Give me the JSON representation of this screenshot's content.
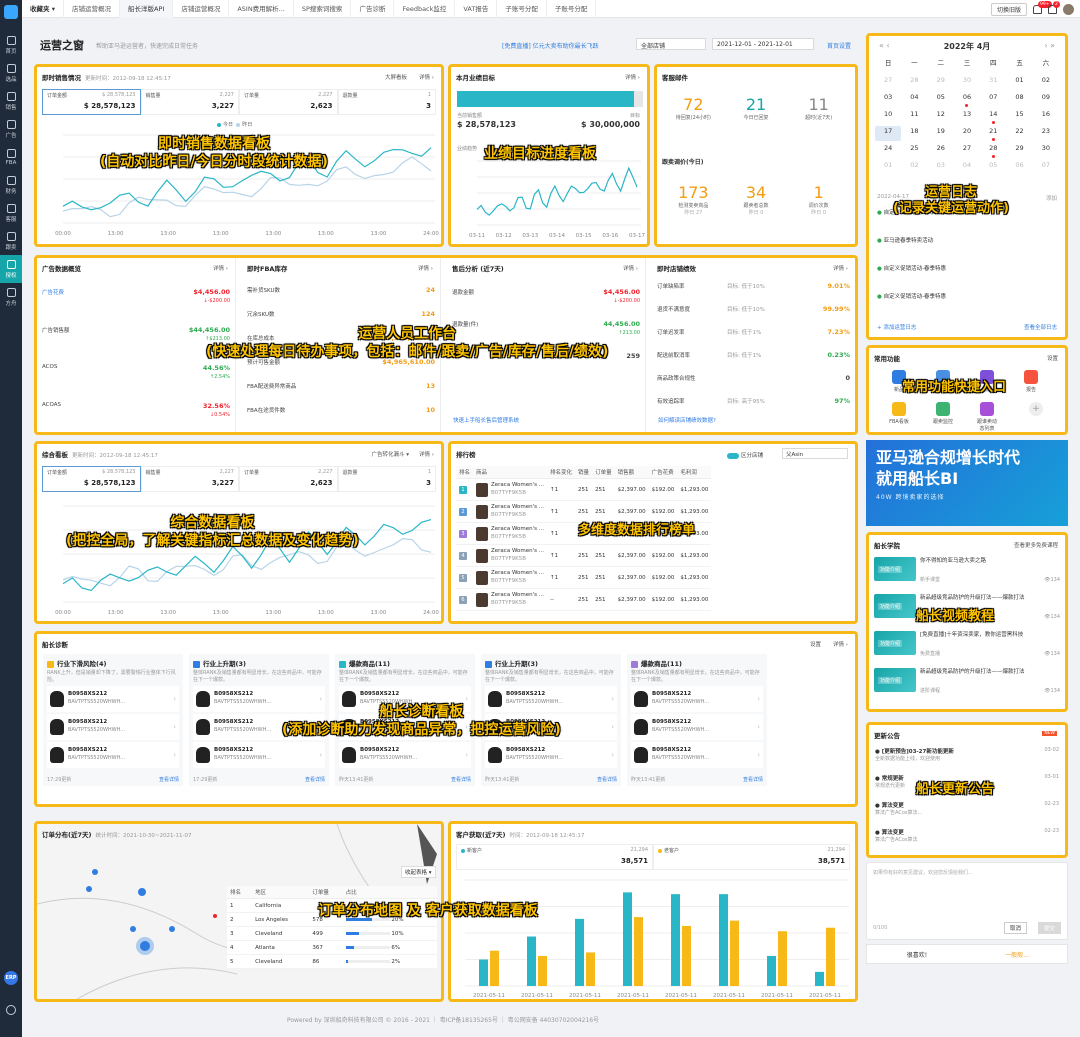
{
  "sidebar": {
    "items": [
      {
        "label": "首页",
        "icon": "home-icon"
      },
      {
        "label": "选品",
        "icon": "select-icon"
      },
      {
        "label": "销售",
        "icon": "sales-icon"
      },
      {
        "label": "广告",
        "icon": "ad-icon"
      },
      {
        "label": "FBA",
        "icon": "fba-icon"
      },
      {
        "label": "财务",
        "icon": "finance-icon"
      },
      {
        "label": "客服",
        "icon": "service-icon"
      },
      {
        "label": "跟卖",
        "icon": "follow-icon"
      },
      {
        "label": "授权",
        "icon": "auth-icon"
      },
      {
        "label": "方舟",
        "icon": "ark-icon"
      }
    ],
    "active_index": 8,
    "erp_label": "ERP"
  },
  "topbar": {
    "tabs": [
      "收藏夹 ▾",
      "店铺运营概况",
      "船长洋版API",
      "店铺运营概况",
      "ASIN费用解析...",
      "SP搜索词搜索",
      "广告诊断",
      "Feedback监控",
      "VAT报告",
      "子账号分配",
      "子账号分配"
    ],
    "active_tab": 2,
    "switch_button": "切换旧版",
    "notif_count": "99+",
    "msg_count": "2"
  },
  "header": {
    "title": "运营之窗",
    "subtitle": "帮助亚马逊运营者，快速完成日常任务",
    "link": "[免费直播] 亿元大卖布助你最长飞跃",
    "select": "全部店铺",
    "date_range": "2021-12-01 - 2021-12-01",
    "settings": "首页设置"
  },
  "realtime_sales": {
    "title": "即时销售情况",
    "time": "更新时间：2012-09-18 12:45:17",
    "menu1": "大屏看板",
    "menu2": "详情 ›",
    "metrics": [
      {
        "label": "订单金额",
        "ref": "$ 28,578,123",
        "value": "$ 28,578,123"
      },
      {
        "label": "销售量",
        "ref": "2,227",
        "value": "3,227"
      },
      {
        "label": "订单量",
        "ref": "2,227",
        "value": "2,623"
      },
      {
        "label": "退款量",
        "ref": "1",
        "value": "3"
      }
    ],
    "legend": [
      "今日",
      "昨日"
    ],
    "x_ticks": [
      "00:00",
      "13:00",
      "13:00",
      "13:00",
      "13:00",
      "13:00",
      "13:00",
      "24:00"
    ]
  },
  "monthly_target": {
    "title": "本月业绩目标",
    "menu": "详情 ›",
    "progress": 0.95,
    "current_label": "当前销售额",
    "current": "$ 28,578,123",
    "target_label": "目标",
    "target": "$ 30,000,000",
    "trend_label": "业绩趋势",
    "x_ticks": [
      "03-11",
      "03-12",
      "03-13",
      "03-14",
      "03-15",
      "03-16",
      "03-17"
    ]
  },
  "customer_mail": {
    "title": "客服邮件",
    "stats": [
      {
        "value": "72",
        "label": "待回复(24小时)"
      },
      {
        "value": "21",
        "label": "今日已回复"
      },
      {
        "value": "11",
        "label": "超时(近7天)"
      }
    ],
    "follow_title": "跟卖调价(今日)",
    "follow_stats": [
      {
        "value": "173",
        "label": "检测变卖商品",
        "sub": "昨日 27"
      },
      {
        "value": "34",
        "label": "跟卖者总数",
        "sub": "昨日 0"
      },
      {
        "value": "1",
        "label": "调价次数",
        "sub": "昨日 0"
      }
    ]
  },
  "calendar": {
    "title": "2022年 4月",
    "weekdays": [
      "日",
      "一",
      "二",
      "三",
      "四",
      "五",
      "六"
    ],
    "days": [
      {
        "d": "27",
        "m": "o"
      },
      {
        "d": "28",
        "m": "o"
      },
      {
        "d": "29",
        "m": "o"
      },
      {
        "d": "30",
        "m": "o"
      },
      {
        "d": "31",
        "m": "o"
      },
      {
        "d": "01",
        "m": ""
      },
      {
        "d": "02",
        "m": ""
      },
      {
        "d": "03",
        "m": ""
      },
      {
        "d": "04",
        "m": ""
      },
      {
        "d": "05",
        "m": ""
      },
      {
        "d": "06",
        "m": "dot"
      },
      {
        "d": "07",
        "m": ""
      },
      {
        "d": "08",
        "m": ""
      },
      {
        "d": "09",
        "m": ""
      },
      {
        "d": "10",
        "m": ""
      },
      {
        "d": "11",
        "m": ""
      },
      {
        "d": "12",
        "m": ""
      },
      {
        "d": "13",
        "m": ""
      },
      {
        "d": "14",
        "m": "dot"
      },
      {
        "d": "15",
        "m": ""
      },
      {
        "d": "16",
        "m": ""
      },
      {
        "d": "17",
        "m": "sel"
      },
      {
        "d": "18",
        "m": ""
      },
      {
        "d": "19",
        "m": ""
      },
      {
        "d": "20",
        "m": ""
      },
      {
        "d": "21",
        "m": "dot"
      },
      {
        "d": "22",
        "m": ""
      },
      {
        "d": "23",
        "m": ""
      },
      {
        "d": "24",
        "m": ""
      },
      {
        "d": "25",
        "m": ""
      },
      {
        "d": "26",
        "m": ""
      },
      {
        "d": "27",
        "m": ""
      },
      {
        "d": "28",
        "m": "dot"
      },
      {
        "d": "29",
        "m": ""
      },
      {
        "d": "30",
        "m": ""
      },
      {
        "d": "01",
        "m": "o"
      },
      {
        "d": "02",
        "m": "o"
      },
      {
        "d": "03",
        "m": "o"
      },
      {
        "d": "04",
        "m": "o"
      },
      {
        "d": "05",
        "m": "o"
      },
      {
        "d": "06",
        "m": "o"
      },
      {
        "d": "07",
        "m": "o"
      }
    ],
    "log_date": "2022-04-17",
    "log_menu": "添加",
    "logs": [
      {
        "text": "自定义促销活动-春季特惠",
        "date": ""
      },
      {
        "text": "亚马逊春季特卖活动",
        "date": ""
      },
      {
        "text": "自定义促销活动-春季特惠",
        "date": ""
      },
      {
        "text": "自定义促销活动-春季特惠",
        "date": ""
      }
    ],
    "add_link": "+ 添加运营日志",
    "all_link": "查看全部日志"
  },
  "ad_overview": {
    "title": "广告数据概览",
    "menu": "详情 ›",
    "rows": [
      {
        "label": "广告花费",
        "value": "$4,456.00",
        "delta": "↓-$200.00",
        "cls": "red",
        "lcls": "blue"
      },
      {
        "label": "广告销售额",
        "value": "$44,456.00",
        "delta": "↑$213.00",
        "cls": "green",
        "lcls": ""
      },
      {
        "label": "ACOS",
        "value": "44.56%",
        "delta": "↑2.54%",
        "cls": "green",
        "lcls": ""
      },
      {
        "label": "ACOAS",
        "value": "32.56%",
        "delta": "↓0.54%",
        "cls": "red",
        "lcls": ""
      }
    ]
  },
  "fba_inventory": {
    "title": "即时FBA库存",
    "menu": "详情 ›",
    "rows": [
      {
        "label": "需补货SKU数",
        "value": "24"
      },
      {
        "label": "冗余SKU数",
        "value": "124"
      },
      {
        "label": "在库总成本",
        "value": "$4,965,610.00"
      },
      {
        "label": "预计可售金额",
        "value": "$4,965,610.00"
      },
      {
        "label": "FBA配送费异常商品",
        "value": "13"
      },
      {
        "label": "FBA在途货件数",
        "value": "10"
      }
    ]
  },
  "after_sales": {
    "title": "售后分析 (近7天)",
    "menu": "详情 ›",
    "rows": [
      {
        "label": "退款金额",
        "value": "$4,456.00",
        "delta": "↓-$200.00",
        "cls": "red"
      },
      {
        "label": "退款量(件)",
        "value": "44,456.00",
        "delta": "↑213.00",
        "cls": "green"
      },
      {
        "label": "Review",
        "value": "259",
        "delta": "",
        "cls": ""
      }
    ],
    "link": "快速上手船长售后管理系统"
  },
  "performance": {
    "title": "即时店铺绩效",
    "menu": "详情 ›",
    "rows": [
      {
        "label": "订单缺陷率",
        "goal": "目标: 低于10%",
        "value": "9.01%",
        "cls": "orange"
      },
      {
        "label": "退货不满意度",
        "goal": "目标: 低于10%",
        "value": "99.99%",
        "cls": "orange"
      },
      {
        "label": "订单迟发率",
        "goal": "目标: 低于1%",
        "value": "7.23%",
        "cls": "orange"
      },
      {
        "label": "配送前取消率",
        "goal": "目标: 低于1%",
        "value": "0.23%",
        "cls": "green"
      },
      {
        "label": "商品政策合规性",
        "goal": "",
        "value": "0",
        "cls": ""
      },
      {
        "label": "有效追踪率",
        "goal": "目标: 高于95%",
        "value": "97%",
        "cls": "green"
      }
    ],
    "link": "如何解读店铺绩效数据?"
  },
  "quick_funcs": {
    "title": "常用功能",
    "menu": "设置",
    "items": [
      {
        "label": "新品",
        "color": "#2f7de1",
        "icon": "new-product-icon"
      },
      {
        "label": "广告",
        "color": "#4a90e2",
        "icon": "ad-func-icon"
      },
      {
        "label": "利润",
        "color": "#7e4fd9",
        "icon": "profit-icon"
      },
      {
        "label": "报告",
        "color": "#f5533d",
        "icon": "report-icon"
      },
      {
        "label": "FBA看板",
        "color": "#f7b917",
        "icon": "fba-board-icon"
      },
      {
        "label": "跟卖监控",
        "color": "#3cb371",
        "icon": "monitor-icon"
      },
      {
        "label": "跟谁卖动态列表",
        "color": "#a64fd9",
        "icon": "list-icon"
      }
    ]
  },
  "banner": {
    "line1": "亚马逊合规增长时代",
    "line2": "就用船长BI",
    "line3": "40W 跨境卖家的选择"
  },
  "academy": {
    "title": "船长学院",
    "menu": "查看更多免费课程",
    "videos": [
      {
        "tag": "功能介绍",
        "title": "你不得知的亚马逊大卖之路",
        "src": "新手课堂",
        "count": "134"
      },
      {
        "tag": "功能介绍",
        "title": "新品超级竞品防护的升级打法——爆款打法",
        "src": "进阶课程",
        "count": "134"
      },
      {
        "tag": "功能介绍",
        "title": "[免费直播]十年资深卖家，教你运营黑科技",
        "src": "免费直播",
        "count": "134"
      },
      {
        "tag": "功能介绍",
        "title": "新品超级竞品防护的升级打法——爆款打法",
        "src": "进阶课程",
        "count": "134"
      }
    ]
  },
  "updates": {
    "title": "更新公告",
    "badge": "NEW",
    "items": [
      {
        "title": "[更新预告]03-27新功能更新",
        "sub": "全新数据功能上线，欢迎使用",
        "date": "03-02"
      },
      {
        "title": "常规更新",
        "sub": "常规迭代更新",
        "date": "03-01"
      },
      {
        "title": "算法变更",
        "sub": "算法广告ACos算法...",
        "date": "02-23"
      },
      {
        "title": "算法变更",
        "sub": "算法广告ACos算法",
        "date": "02-23"
      }
    ]
  },
  "feedback": {
    "placeholder": "如果你有好的意见建议，欢迎您反馈给我们...",
    "count": "0/100",
    "cancel": "取消",
    "submit": "提交",
    "like": "很喜欢!",
    "neutral": "一般般..."
  },
  "overview": {
    "title": "综合看板",
    "time": "更新时间：2012-09-18 12:45:17",
    "select": "广告转化漏斗 ▾",
    "menu": "详情 ›",
    "metrics": [
      {
        "label": "订单金额",
        "ref": "$ 28,578,123",
        "value": "$ 28,578,123"
      },
      {
        "label": "销售量",
        "ref": "2,227",
        "value": "3,227"
      },
      {
        "label": "订单量",
        "ref": "2,227",
        "value": "2,623"
      },
      {
        "label": "退款量",
        "ref": "1",
        "value": "3"
      }
    ],
    "x_ticks": [
      "00:00",
      "13:00",
      "13:00",
      "13:00",
      "13:00",
      "13:00",
      "13:00",
      "24:00"
    ]
  },
  "ranking": {
    "title": "排行榜",
    "toggle": "区分店铺",
    "select": "父Asin",
    "headers": [
      "排名",
      "商品",
      "排名变化",
      "销量",
      "订单量",
      "销售额",
      "广告花费",
      "毛利润"
    ],
    "rows": [
      {
        "rank": "1",
        "name": "Zeraca Women's ...",
        "asin": "B07TYF9K5B",
        "change": "↑1",
        "sales": "251",
        "orders": "251",
        "revenue": "$2,397.00",
        "ad": "$192.00",
        "profit": "$1,293.00",
        "color": "#29b6c6"
      },
      {
        "rank": "2",
        "name": "Zeraca Women's ...",
        "asin": "B07TYF9K5B",
        "change": "↑1",
        "sales": "251",
        "orders": "251",
        "revenue": "$2,397.00",
        "ad": "$192.00",
        "profit": "$1,293.00",
        "color": "#5b9bd5"
      },
      {
        "rank": "3",
        "name": "Zeraca Women's ...",
        "asin": "B07TYF9K5B",
        "change": "↑1",
        "sales": "251",
        "orders": "251",
        "revenue": "$2,397.00",
        "ad": "$192.00",
        "profit": "$1,293.00",
        "color": "#9e7ad9"
      },
      {
        "rank": "4",
        "name": "Zeraca Women's ...",
        "asin": "B07TYF9K5B",
        "change": "↑1",
        "sales": "251",
        "orders": "251",
        "revenue": "$2,397.00",
        "ad": "$192.00",
        "profit": "$1,293.00",
        "color": "#8ca0b6"
      },
      {
        "rank": "5",
        "name": "Zeraca Women's ...",
        "asin": "B07TYF9K5B",
        "change": "↑1",
        "sales": "251",
        "orders": "251",
        "revenue": "$2,397.00",
        "ad": "$192.00",
        "profit": "$1,293.00",
        "color": "#8ca0b6"
      },
      {
        "rank": "6",
        "name": "Zeraca Women's ...",
        "asin": "B07TYF9K5B",
        "change": "--",
        "sales": "251",
        "orders": "251",
        "revenue": "$2,397.00",
        "ad": "$192.00",
        "profit": "$1,293.00",
        "color": "#8ca0b6"
      }
    ]
  },
  "diagnosis": {
    "title": "船长诊断",
    "menu1": "设置",
    "menu2": "详情 ›",
    "columns": [
      {
        "title": "行业下滑风险(4)",
        "desc": "RANK上升，但是销量却下降了，需要警惕行业整体下行风险。",
        "color": "#f7b917",
        "foot": "17:29更新",
        "link": "查看详情"
      },
      {
        "title": "行业上升期(3)",
        "desc": "整体RANK及销售量都有明显增长，在这些商品中，可能存在下一个爆款。",
        "color": "#2f7de1",
        "foot": "17:29更新",
        "link": "查看详情"
      },
      {
        "title": "爆款商品(11)",
        "desc": "整体RANK及销售量都有明显增长，在这些商品中，可能存在下一个爆款。",
        "color": "#29b6c6",
        "foot": "昨天13:41更新",
        "link": "查看详情"
      },
      {
        "title": "行业上升期(3)",
        "desc": "整体RANK及销售量都有明显增长，在这些商品中，可能存在下一个爆款。",
        "color": "#2f7de1",
        "foot": "昨天13:41更新",
        "link": "查看详情"
      },
      {
        "title": "爆款商品(11)",
        "desc": "整体RANK及销售量都有明显增长，在这些商品中，可能存在下一个爆款。",
        "color": "#9e7ad9",
        "foot": "昨天13:41更新",
        "link": "查看详情"
      }
    ],
    "item_asin": "B0958XS212",
    "item_sku": "BAVTPTS5520WHWH..."
  },
  "order_map": {
    "title": "订单分布(近7天)",
    "time": "统计时间：2021-10-30~2021-11-07",
    "toggle": "收起表格 ▾",
    "headers": [
      "排名",
      "地区",
      "订单量",
      "占比"
    ],
    "rows": [
      {
        "rank": "1",
        "region": "California",
        "orders": "",
        "pct": ""
      },
      {
        "rank": "2",
        "region": "Los Angeles",
        "orders": "578",
        "pct": "20%"
      },
      {
        "rank": "3",
        "region": "Cleveland",
        "orders": "499",
        "pct": "10%"
      },
      {
        "rank": "4",
        "region": "Atlanta",
        "orders": "367",
        "pct": "6%"
      },
      {
        "rank": "5",
        "region": "Cleveland",
        "orders": "86",
        "pct": "2%"
      }
    ]
  },
  "customer_acq": {
    "title": "客户获取(近7天)",
    "time": "时间：2012-09-18 12:45:17",
    "new_label": "新客户",
    "new_ref": "21,294",
    "new_value": "38,571",
    "old_label": "老客户",
    "old_ref": "21,294",
    "old_value": "38,571"
  },
  "chart_data": [
    {
      "type": "bar",
      "title": "客户获取(近7天)",
      "categories": [
        "2021-05-11",
        "2021-05-11",
        "2021-05-11",
        "2021-05-11",
        "2021-05-11",
        "2021-05-11",
        "2021-05-11",
        "2021-05-11"
      ],
      "series": [
        {
          "name": "新客户",
          "values": [
            15,
            28,
            38,
            53,
            52,
            52,
            17,
            8
          ]
        },
        {
          "name": "老客户",
          "values": [
            20,
            17,
            19,
            39,
            34,
            37,
            31,
            33
          ]
        }
      ],
      "ylim": [
        0,
        60
      ]
    }
  ],
  "annotations": [
    {
      "line1": "即时销售数据看板",
      "line2": "(自动对比昨日/今日分时段统计数据)"
    },
    {
      "line1": "业绩目标进度看板",
      "line2": ""
    },
    {
      "line1": "运营日志",
      "line2": "(记录关键运营动作)"
    },
    {
      "line1": "运营人员工作台",
      "line2": "(快速处理每日待办事项，包括：邮件/跟卖/广告/库存/售后/绩效)"
    },
    {
      "line1": "常用功能快捷入口",
      "line2": ""
    },
    {
      "line1": "综合数据看板",
      "line2": "(把控全局，了解关键指标汇总数据及变化趋势)"
    },
    {
      "line1": "多维度数据排行榜单",
      "line2": ""
    },
    {
      "line1": "船长视频教程",
      "line2": ""
    },
    {
      "line1": "船长诊断看板",
      "line2": "(添加诊断助力发现商品异常，把控运营风险)"
    },
    {
      "line1": "船长更新公告",
      "line2": ""
    },
    {
      "line1": "订单分布地图 及 客户获取数据看板",
      "line2": ""
    }
  ],
  "footer": "Powered by 深圳船奇科技有限公司 © 2016 - 2021 ｜ 粤ICP备18135265号 ｜ 粤公网安备 44030702004216号"
}
